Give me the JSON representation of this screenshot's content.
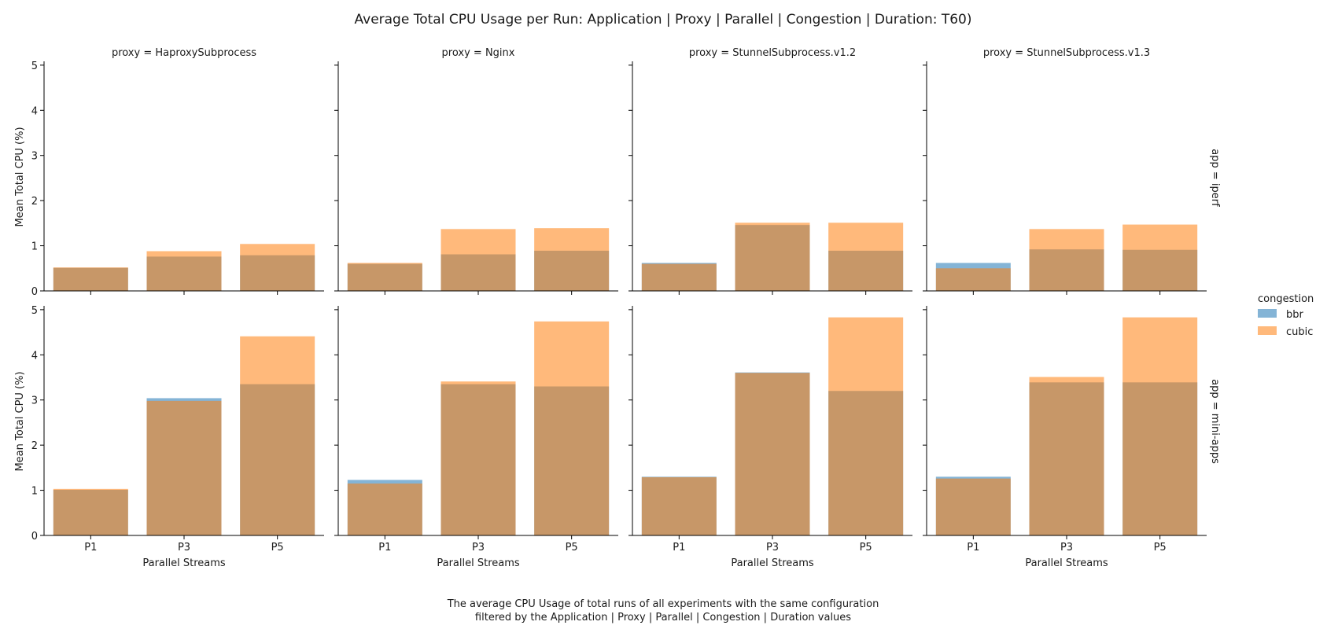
{
  "title": "Average Total CPU Usage per Run: Application | Proxy | Parallel | Congestion | Duration: T60)",
  "caption": [
    "The average CPU Usage of total runs of all experiments with the same configuration",
    "filtered by the Application | Proxy | Parallel | Congestion | Duration values"
  ],
  "legend": {
    "title": "congestion",
    "items": [
      {
        "name": "bbr",
        "color": "#1f77b4"
      },
      {
        "name": "cubic",
        "color": "#ff7f0e"
      }
    ]
  },
  "chart_data": {
    "type": "bar",
    "facet_columns": [
      "proxy = HaproxySubprocess",
      "proxy = Nginx",
      "proxy = StunnelSubprocess.v1.2",
      "proxy = StunnelSubprocess.v1.3"
    ],
    "facet_rows": [
      "app = iperf",
      "app = mini-apps"
    ],
    "categories": [
      "P1",
      "P3",
      "P5"
    ],
    "xlabel": "Parallel Streams",
    "ylabel": "Mean Total CPU (%)",
    "ylim": [
      0,
      5.05
    ],
    "yticks": [
      0,
      1,
      2,
      3,
      4,
      5
    ],
    "bar_opacity": 0.55,
    "series_order": [
      "bbr",
      "cubic"
    ],
    "panels": [
      [
        {
          "bbr": [
            0.51,
            0.76,
            0.79
          ],
          "cubic": [
            0.52,
            0.88,
            1.04
          ]
        },
        {
          "bbr": [
            0.6,
            0.81,
            0.89
          ],
          "cubic": [
            0.62,
            1.37,
            1.39
          ]
        },
        {
          "bbr": [
            0.62,
            1.46,
            0.89
          ],
          "cubic": [
            0.6,
            1.51,
            1.51
          ]
        },
        {
          "bbr": [
            0.62,
            0.92,
            0.91
          ],
          "cubic": [
            0.5,
            1.37,
            1.47
          ]
        }
      ],
      [
        {
          "bbr": [
            1.01,
            3.04,
            3.35
          ],
          "cubic": [
            1.03,
            2.98,
            4.41
          ]
        },
        {
          "bbr": [
            1.23,
            3.35,
            3.3
          ],
          "cubic": [
            1.15,
            3.41,
            4.74
          ]
        },
        {
          "bbr": [
            1.3,
            3.61,
            3.2
          ],
          "cubic": [
            1.29,
            3.6,
            4.83
          ]
        },
        {
          "bbr": [
            1.3,
            3.39,
            3.39
          ],
          "cubic": [
            1.26,
            3.51,
            4.83
          ]
        }
      ]
    ]
  }
}
